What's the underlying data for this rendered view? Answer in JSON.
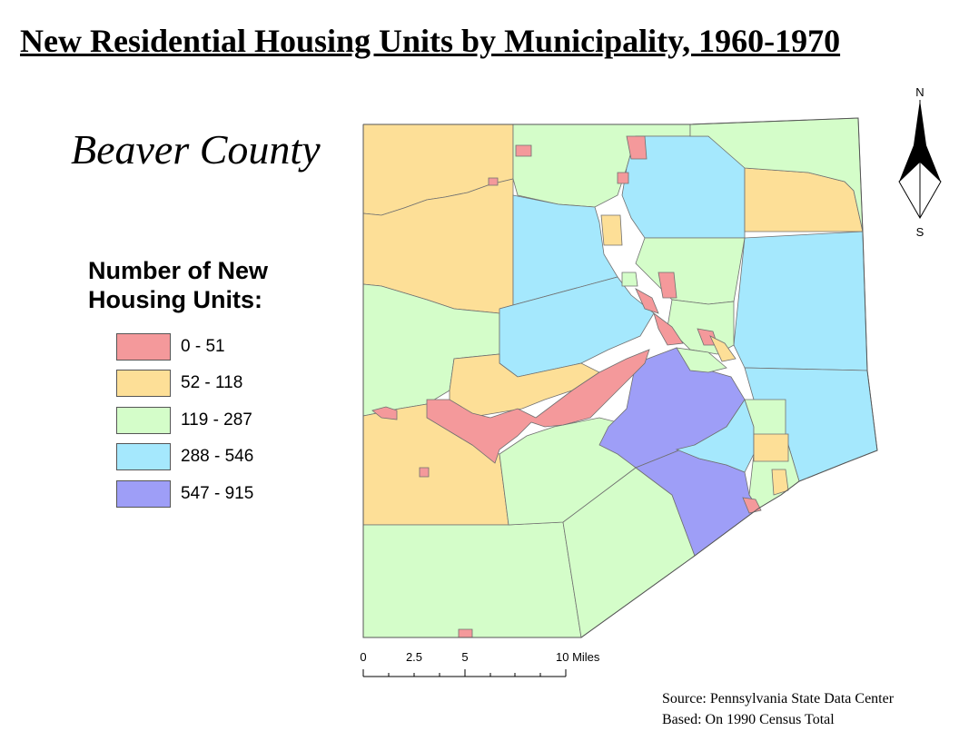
{
  "title": "New Residential Housing Units by Municipality, 1960-1970",
  "county": "Beaver County",
  "legend": {
    "title": "Number of New Housing Units:",
    "classes": [
      {
        "label": "0 - 51",
        "color": "#f4999b"
      },
      {
        "label": "52 - 118",
        "color": "#fddf97"
      },
      {
        "label": "119 - 287",
        "color": "#d4fdc9"
      },
      {
        "label": "288 - 546",
        "color": "#a5e8fd"
      },
      {
        "label": "547 - 915",
        "color": "#9e9ef7"
      }
    ]
  },
  "north_arrow": {
    "north": "N",
    "south": "S"
  },
  "scale_bar": {
    "ticks": [
      "0",
      "2.5",
      "5",
      "10 Miles"
    ]
  },
  "source": {
    "line1": "Source: Pennsylvania State Data Center",
    "line2": "Based: On 1990 Census Total"
  }
}
